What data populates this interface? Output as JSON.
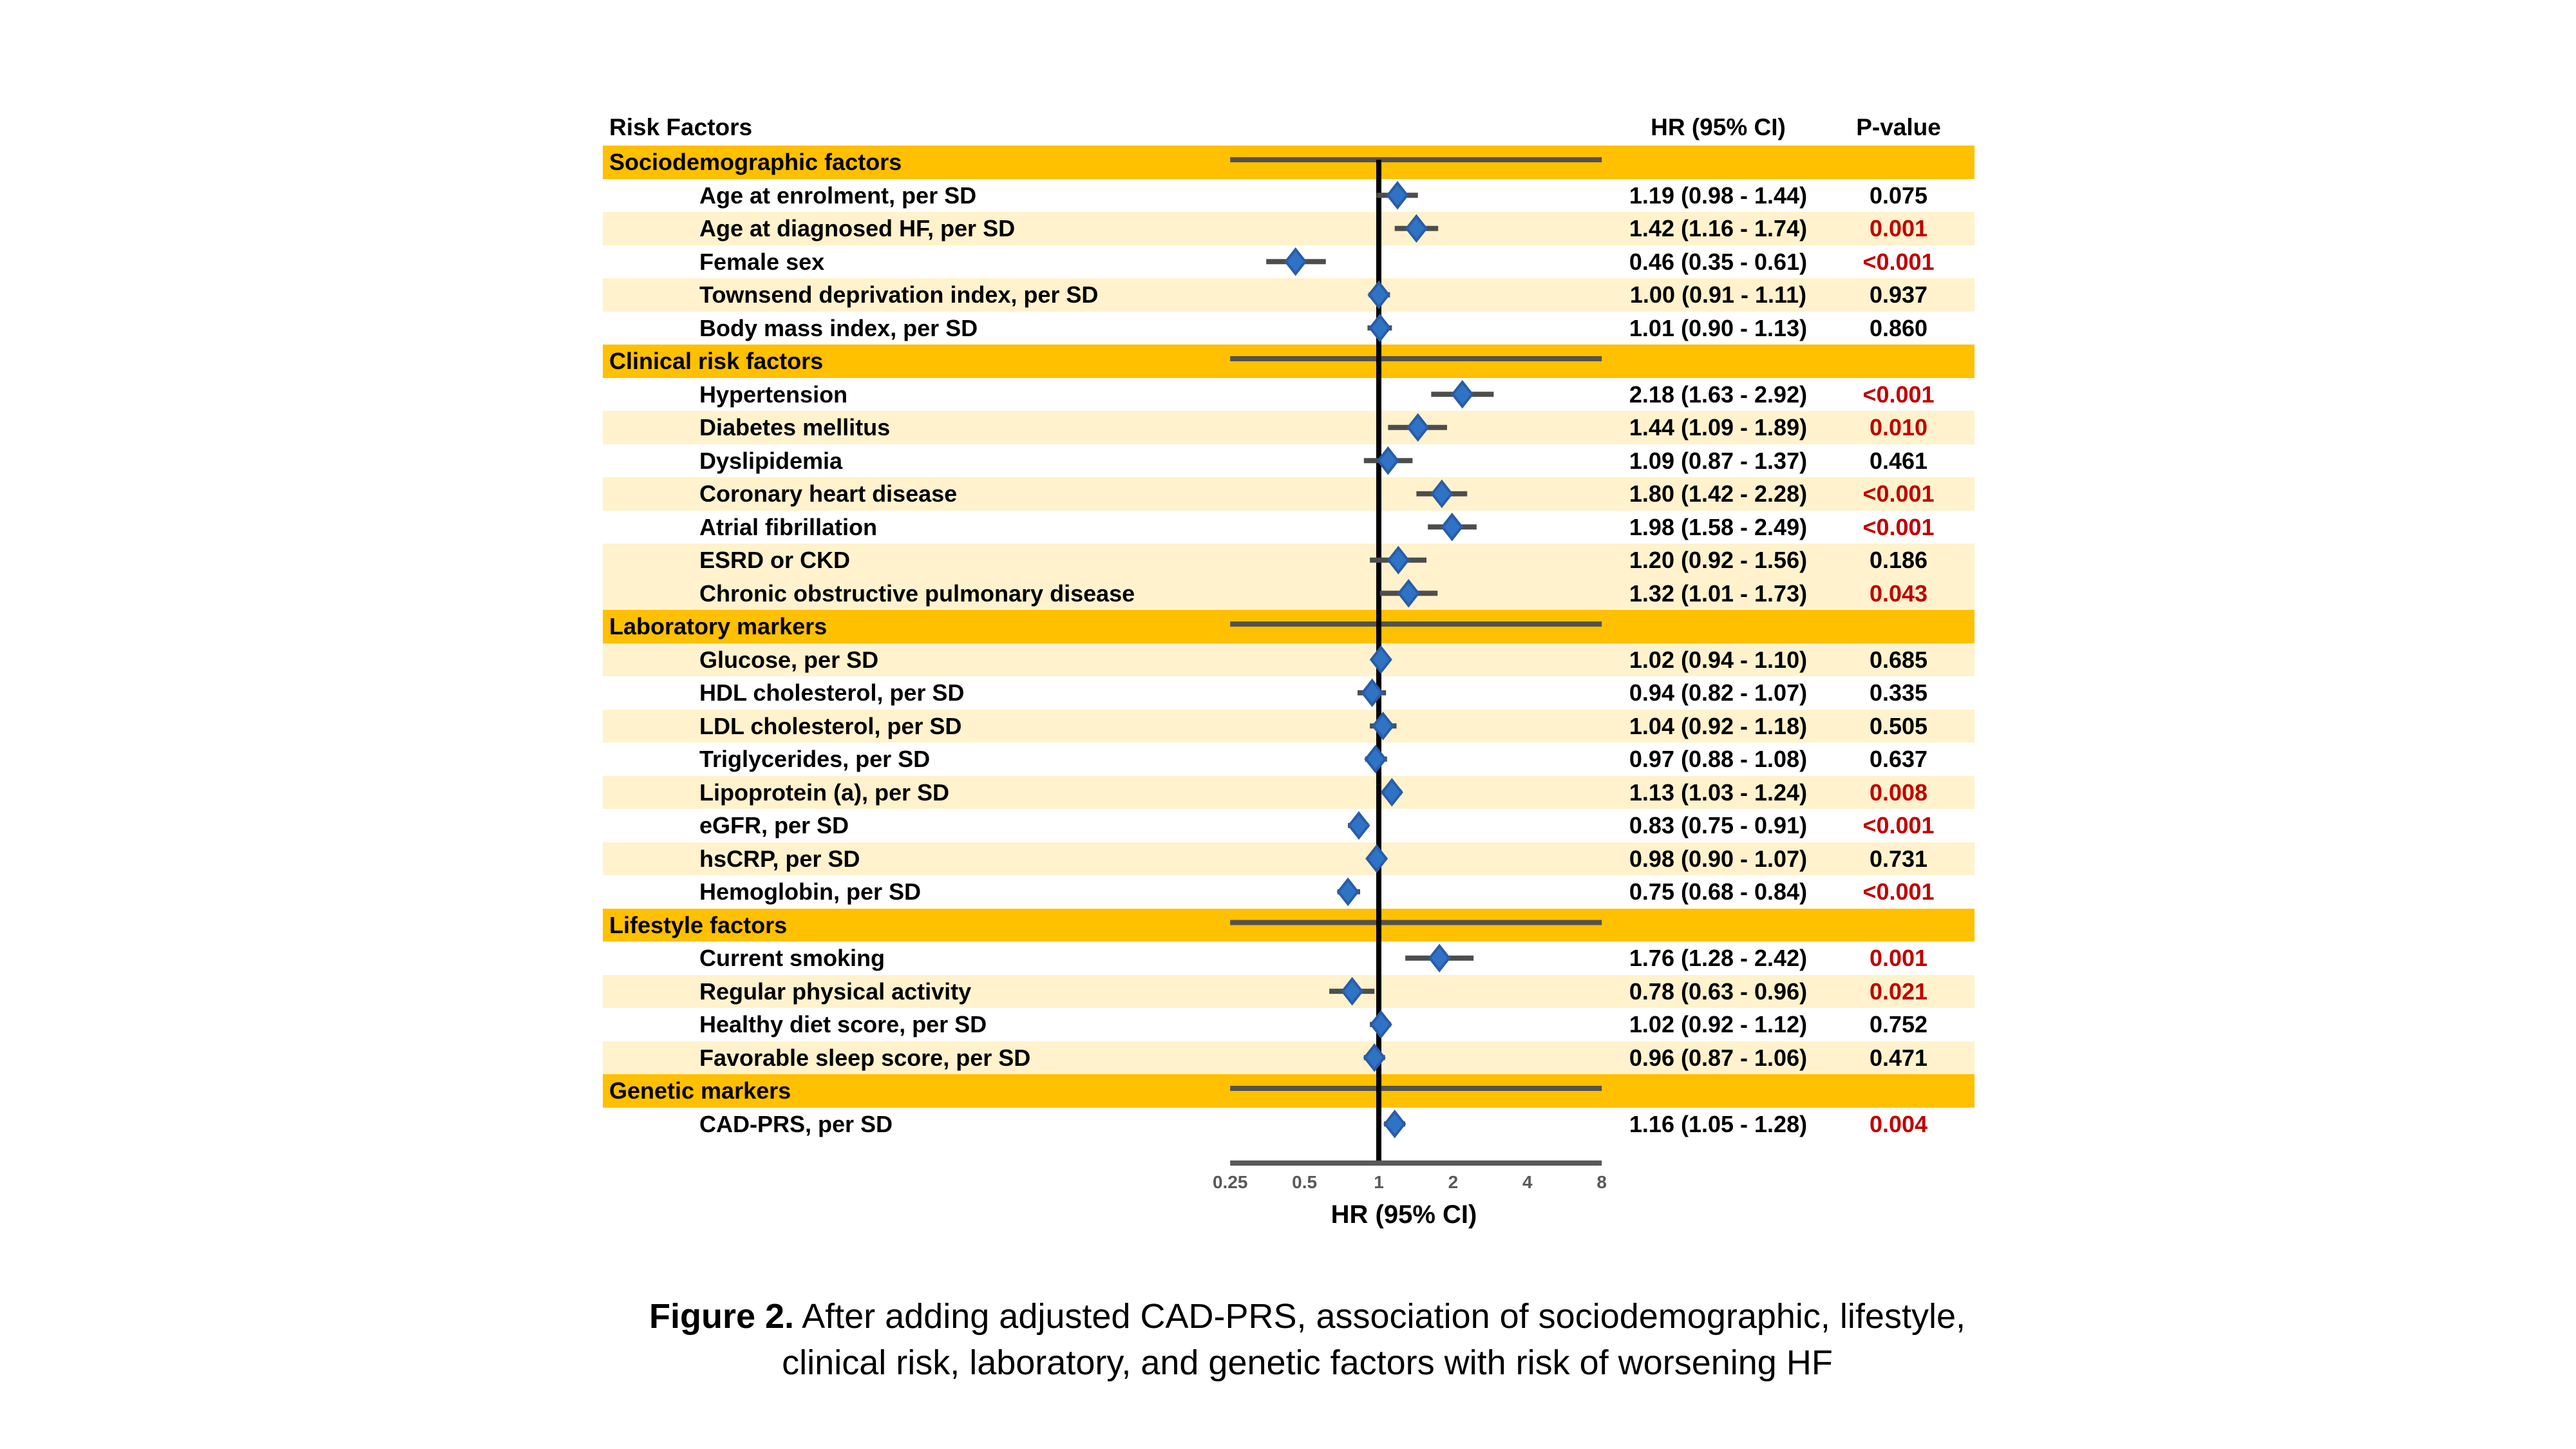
{
  "header": {
    "risk_factors": "Risk Factors",
    "hr_ci": "HR (95% CI)",
    "p_value": "P-value"
  },
  "caption": {
    "figure_label": "Figure 2.",
    "line1": "After adding adjusted CAD-PRS, association of sociodemographic, lifestyle,",
    "line2": "clinical risk, laboratory, and genetic factors with risk of worsening HF"
  },
  "colors": {
    "section_band": "#FFC000",
    "row_cream": "#FFF2CC",
    "row_white": "#FFFFFF",
    "diamond_fill": "#2E73C4",
    "diamond_stroke": "#2A5CA8",
    "ci_line": "#4D4D4D",
    "band_line": "#54524E",
    "reference_line": "#000000",
    "axis_line": "#595959",
    "tick_text": "#595959",
    "p_significant": "#C00000",
    "p_normal": "#000000"
  },
  "chart_data": {
    "type": "forest",
    "x_scale": "log2",
    "x_range": [
      0.25,
      8
    ],
    "x_ticks": [
      {
        "label": "0.25",
        "value": 0.25
      },
      {
        "label": "0.5",
        "value": 0.5
      },
      {
        "label": "1",
        "value": 1
      },
      {
        "label": "2",
        "value": 2
      },
      {
        "label": "4",
        "value": 4
      },
      {
        "label": "8",
        "value": 8
      }
    ],
    "x_axis_label": "HR (95% CI)",
    "reference_line": 1.0,
    "sections": [
      {
        "title": "Sociodemographic factors",
        "rows": [
          {
            "label": "Age at enrolment, per SD",
            "hr": 1.19,
            "ci_low": 0.98,
            "ci_high": 1.44,
            "hr_text": "1.19 (0.98 - 1.44)",
            "p_text": "0.075",
            "significant": false,
            "bg": "white"
          },
          {
            "label": "Age at diagnosed HF, per SD",
            "hr": 1.42,
            "ci_low": 1.16,
            "ci_high": 1.74,
            "hr_text": "1.42 (1.16 - 1.74)",
            "p_text": "0.001",
            "significant": true,
            "bg": "cream"
          },
          {
            "label": "Female sex",
            "hr": 0.46,
            "ci_low": 0.35,
            "ci_high": 0.61,
            "hr_text": "0.46 (0.35 - 0.61)",
            "p_text": "<0.001",
            "significant": true,
            "bg": "white"
          },
          {
            "label": "Townsend deprivation index, per SD",
            "hr": 1.0,
            "ci_low": 0.91,
            "ci_high": 1.11,
            "hr_text": "1.00 (0.91 - 1.11)",
            "p_text": "0.937",
            "significant": false,
            "bg": "cream"
          },
          {
            "label": "Body mass index, per SD",
            "hr": 1.01,
            "ci_low": 0.9,
            "ci_high": 1.13,
            "hr_text": "1.01 (0.90 - 1.13)",
            "p_text": "0.860",
            "significant": false,
            "bg": "white"
          }
        ]
      },
      {
        "title": "Clinical risk factors",
        "rows": [
          {
            "label": "Hypertension",
            "hr": 2.18,
            "ci_low": 1.63,
            "ci_high": 2.92,
            "hr_text": "2.18 (1.63 - 2.92)",
            "p_text": "<0.001",
            "significant": true,
            "bg": "white"
          },
          {
            "label": "Diabetes mellitus",
            "hr": 1.44,
            "ci_low": 1.09,
            "ci_high": 1.89,
            "hr_text": "1.44 (1.09 - 1.89)",
            "p_text": "0.010",
            "significant": true,
            "bg": "cream"
          },
          {
            "label": "Dyslipidemia",
            "hr": 1.09,
            "ci_low": 0.87,
            "ci_high": 1.37,
            "hr_text": "1.09 (0.87 - 1.37)",
            "p_text": "0.461",
            "significant": false,
            "bg": "white"
          },
          {
            "label": "Coronary heart disease",
            "hr": 1.8,
            "ci_low": 1.42,
            "ci_high": 2.28,
            "hr_text": "1.80 (1.42 - 2.28)",
            "p_text": "<0.001",
            "significant": true,
            "bg": "cream"
          },
          {
            "label": "Atrial fibrillation",
            "hr": 1.98,
            "ci_low": 1.58,
            "ci_high": 2.49,
            "hr_text": "1.98 (1.58 - 2.49)",
            "p_text": "<0.001",
            "significant": true,
            "bg": "white"
          },
          {
            "label": "ESRD or CKD",
            "hr": 1.2,
            "ci_low": 0.92,
            "ci_high": 1.56,
            "hr_text": "1.20 (0.92 - 1.56)",
            "p_text": "0.186",
            "significant": false,
            "bg": "cream"
          },
          {
            "label": "Chronic obstructive pulmonary disease",
            "hr": 1.32,
            "ci_low": 1.01,
            "ci_high": 1.73,
            "hr_text": "1.32 (1.01 - 1.73)",
            "p_text": "0.043",
            "significant": true,
            "bg": "cream"
          }
        ]
      },
      {
        "title": "Laboratory markers",
        "rows": [
          {
            "label": "Glucose, per SD",
            "hr": 1.02,
            "ci_low": 0.94,
            "ci_high": 1.1,
            "hr_text": "1.02 (0.94 - 1.10)",
            "p_text": "0.685",
            "significant": false,
            "bg": "cream"
          },
          {
            "label": "HDL cholesterol, per SD",
            "hr": 0.94,
            "ci_low": 0.82,
            "ci_high": 1.07,
            "hr_text": "0.94 (0.82 - 1.07)",
            "p_text": "0.335",
            "significant": false,
            "bg": "white"
          },
          {
            "label": "LDL cholesterol, per SD",
            "hr": 1.04,
            "ci_low": 0.92,
            "ci_high": 1.18,
            "hr_text": "1.04 (0.92 - 1.18)",
            "p_text": "0.505",
            "significant": false,
            "bg": "cream"
          },
          {
            "label": "Triglycerides, per SD",
            "hr": 0.97,
            "ci_low": 0.88,
            "ci_high": 1.08,
            "hr_text": "0.97 (0.88 - 1.08)",
            "p_text": "0.637",
            "significant": false,
            "bg": "white"
          },
          {
            "label": "Lipoprotein (a), per SD",
            "hr": 1.13,
            "ci_low": 1.03,
            "ci_high": 1.24,
            "hr_text": "1.13 (1.03 - 1.24)",
            "p_text": "0.008",
            "significant": true,
            "bg": "cream"
          },
          {
            "label": "eGFR, per SD",
            "hr": 0.83,
            "ci_low": 0.75,
            "ci_high": 0.91,
            "hr_text": "0.83 (0.75 - 0.91)",
            "p_text": "<0.001",
            "significant": true,
            "bg": "white"
          },
          {
            "label": "hsCRP, per SD",
            "hr": 0.98,
            "ci_low": 0.9,
            "ci_high": 1.07,
            "hr_text": "0.98 (0.90 - 1.07)",
            "p_text": "0.731",
            "significant": false,
            "bg": "cream"
          },
          {
            "label": "Hemoglobin, per SD",
            "hr": 0.75,
            "ci_low": 0.68,
            "ci_high": 0.84,
            "hr_text": "0.75 (0.68 - 0.84)",
            "p_text": "<0.001",
            "significant": true,
            "bg": "white"
          }
        ]
      },
      {
        "title": "Lifestyle factors",
        "rows": [
          {
            "label": "Current smoking",
            "hr": 1.76,
            "ci_low": 1.28,
            "ci_high": 2.42,
            "hr_text": "1.76 (1.28 - 2.42)",
            "p_text": "0.001",
            "significant": true,
            "bg": "white"
          },
          {
            "label": "Regular physical activity",
            "hr": 0.78,
            "ci_low": 0.63,
            "ci_high": 0.96,
            "hr_text": "0.78 (0.63 - 0.96)",
            "p_text": "0.021",
            "significant": true,
            "bg": "cream"
          },
          {
            "label": "Healthy diet score, per SD",
            "hr": 1.02,
            "ci_low": 0.92,
            "ci_high": 1.12,
            "hr_text": "1.02 (0.92 - 1.12)",
            "p_text": "0.752",
            "significant": false,
            "bg": "white"
          },
          {
            "label": "Favorable sleep score, per SD",
            "hr": 0.96,
            "ci_low": 0.87,
            "ci_high": 1.06,
            "hr_text": "0.96 (0.87 - 1.06)",
            "p_text": "0.471",
            "significant": false,
            "bg": "cream"
          }
        ]
      },
      {
        "title": "Genetic markers",
        "rows": [
          {
            "label": "CAD-PRS, per SD",
            "hr": 1.16,
            "ci_low": 1.05,
            "ci_high": 1.28,
            "hr_text": "1.16 (1.05 - 1.28)",
            "p_text": "0.004",
            "significant": true,
            "bg": "white"
          }
        ]
      }
    ]
  }
}
